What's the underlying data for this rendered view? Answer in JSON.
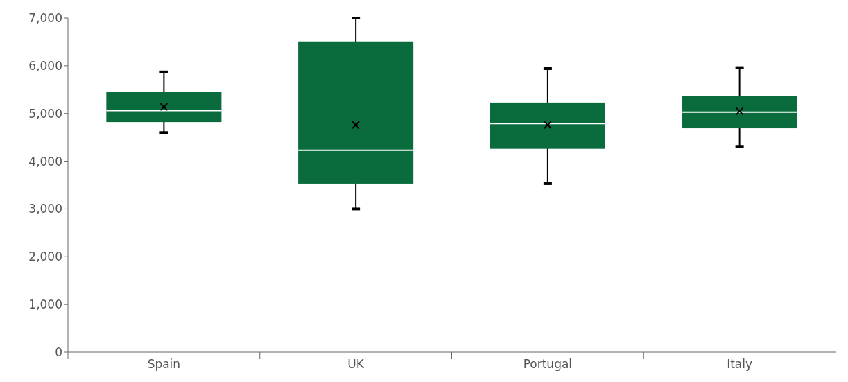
{
  "chart_data": {
    "type": "box",
    "categories": [
      "Spain",
      "UK",
      "Portugal",
      "Italy"
    ],
    "color": "#0a6b3d",
    "boxes": [
      {
        "low": 4600,
        "q1": 4820,
        "median": 5060,
        "q3": 5460,
        "high": 5870,
        "mean": 5140
      },
      {
        "low": 3000,
        "q1": 3530,
        "median": 4230,
        "q3": 6510,
        "high": 7000,
        "mean": 4760
      },
      {
        "low": 3530,
        "q1": 4260,
        "median": 4790,
        "q3": 5230,
        "high": 5940,
        "mean": 4760
      },
      {
        "low": 4310,
        "q1": 4690,
        "median": 5030,
        "q3": 5360,
        "high": 5960,
        "mean": 5050
      }
    ],
    "ylim": [
      0,
      7000
    ],
    "yticks": [
      0,
      {
        "value": 1000,
        "label": "1,000"
      },
      {
        "value": 2000,
        "label": "2,000"
      },
      {
        "value": 3000,
        "label": "3,000"
      },
      {
        "value": 4000,
        "label": "4,000"
      },
      {
        "value": 5000,
        "label": "5,000"
      },
      {
        "value": 6000,
        "label": "6,000"
      },
      {
        "value": 7000,
        "label": "7,000"
      }
    ],
    "grid": false
  }
}
